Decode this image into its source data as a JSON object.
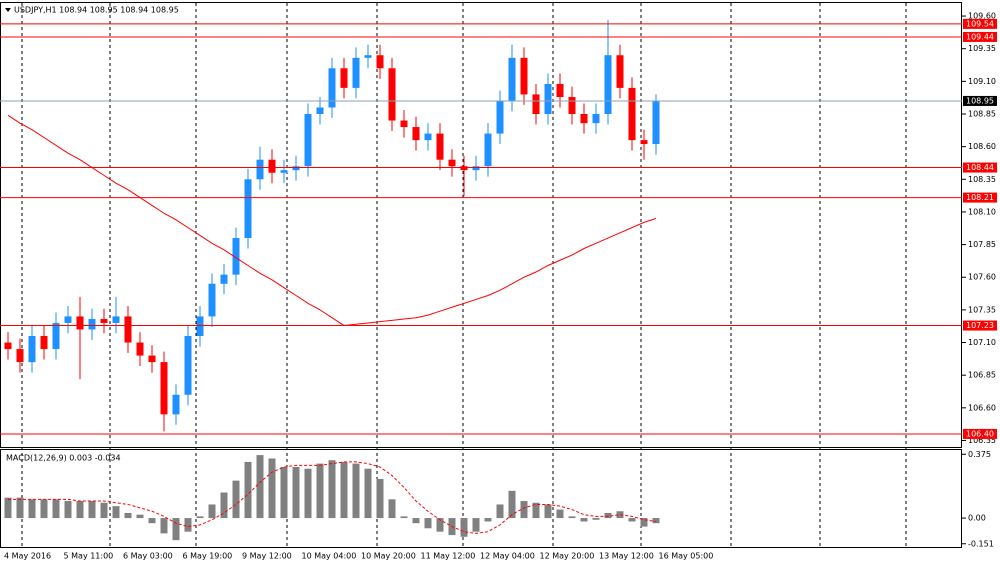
{
  "chart_data": [
    {
      "type": "candlestick",
      "title": "USDJPY,H1  108.94 108.95 108.94 108.95",
      "up_color": "#1e90ff",
      "down_color": "#ff0000",
      "open": [
        107.1,
        107.05,
        106.95,
        107.15,
        107.05,
        107.25,
        107.3,
        107.2,
        107.28,
        107.25,
        107.3,
        107.1,
        107.0,
        106.95,
        106.55,
        106.7,
        107.15,
        107.3,
        107.55,
        107.62,
        107.9,
        108.35,
        108.5,
        108.4,
        108.42,
        108.45,
        108.85,
        108.9,
        109.2,
        109.05,
        109.28,
        109.3,
        109.2,
        108.8,
        108.75,
        108.65,
        108.7,
        108.5,
        108.45,
        108.42,
        108.45,
        108.7,
        108.95,
        109.28,
        109.0,
        108.85,
        109.08,
        108.98,
        108.85,
        108.78,
        108.85,
        109.3,
        109.05,
        108.65,
        108.62
      ],
      "high": [
        107.18,
        107.13,
        107.23,
        107.23,
        107.33,
        107.38,
        107.45,
        107.36,
        107.36,
        107.45,
        107.38,
        107.18,
        107.08,
        107.03,
        106.78,
        107.23,
        107.38,
        107.63,
        107.7,
        107.98,
        108.43,
        108.6,
        108.58,
        108.5,
        108.53,
        108.93,
        108.98,
        109.28,
        109.28,
        109.36,
        109.38,
        109.38,
        109.28,
        108.88,
        108.83,
        108.78,
        108.78,
        108.58,
        108.53,
        108.53,
        108.78,
        109.03,
        109.38,
        109.36,
        109.08,
        109.16,
        109.16,
        109.06,
        108.93,
        108.93,
        109.57,
        109.38,
        109.13,
        108.73,
        109.0
      ],
      "low": [
        106.97,
        106.87,
        106.87,
        106.97,
        106.97,
        107.17,
        106.82,
        107.12,
        107.17,
        107.17,
        107.02,
        106.92,
        106.87,
        106.42,
        106.47,
        106.62,
        107.07,
        107.22,
        107.47,
        107.54,
        107.82,
        108.27,
        108.32,
        108.32,
        108.34,
        108.37,
        108.77,
        108.82,
        108.97,
        108.97,
        109.2,
        109.12,
        108.72,
        108.67,
        108.57,
        108.57,
        108.42,
        108.37,
        108.22,
        108.34,
        108.37,
        108.62,
        108.87,
        108.92,
        108.77,
        108.77,
        108.9,
        108.77,
        108.7,
        108.7,
        108.77,
        108.97,
        108.57,
        108.5,
        108.54
      ],
      "close": [
        107.05,
        106.95,
        107.15,
        107.05,
        107.25,
        107.3,
        107.2,
        107.28,
        107.25,
        107.3,
        107.1,
        107.0,
        106.95,
        106.55,
        106.7,
        107.15,
        107.3,
        107.55,
        107.62,
        107.9,
        108.35,
        108.5,
        108.4,
        108.42,
        108.45,
        108.85,
        108.9,
        109.2,
        109.05,
        109.28,
        109.3,
        109.2,
        108.8,
        108.75,
        108.65,
        108.7,
        108.5,
        108.45,
        108.42,
        108.45,
        108.7,
        108.95,
        109.28,
        109.0,
        108.85,
        109.08,
        108.98,
        108.85,
        108.78,
        108.85,
        109.3,
        109.05,
        108.65,
        108.62,
        108.95
      ],
      "ma": {
        "color": "#ff0000",
        "values": [
          108.84,
          108.78,
          108.73,
          108.67,
          108.61,
          108.55,
          108.5,
          108.44,
          108.38,
          108.32,
          108.27,
          108.21,
          108.15,
          108.09,
          108.04,
          107.98,
          107.92,
          107.86,
          107.81,
          107.75,
          107.69,
          107.63,
          107.58,
          107.52,
          107.46,
          107.4,
          107.35,
          107.29,
          107.23,
          107.24,
          107.25,
          107.26,
          107.27,
          107.28,
          107.29,
          107.31,
          107.34,
          107.37,
          107.4,
          107.43,
          107.46,
          107.5,
          107.55,
          107.6,
          107.64,
          107.69,
          107.73,
          107.77,
          107.82,
          107.86,
          107.9,
          107.94,
          107.98,
          108.02,
          108.05
        ]
      },
      "levels": {
        "color": "#ff0000",
        "values": [
          109.54,
          109.44,
          108.44,
          108.21,
          107.23,
          {
            "value": 106.4,
            "label": "106.40"
          }
        ]
      },
      "bid": {
        "value": 108.95,
        "color": "#8ea0b4"
      },
      "ylim": [
        106.3,
        109.7
      ],
      "yticks": [
        {
          "value": 109.6,
          "label": "109.60"
        },
        109.35,
        {
          "value": 109.1,
          "label": "109.10"
        },
        108.85,
        {
          "value": 108.6,
          "label": "108.60"
        },
        108.35,
        {
          "value": 108.1,
          "label": "108.10"
        },
        107.85,
        {
          "value": 107.6,
          "label": "107.60"
        },
        107.35,
        {
          "value": 107.1,
          "label": "107.10"
        },
        106.85,
        {
          "value": 106.6,
          "label": "106.60"
        },
        106.35
      ],
      "x_labels": [
        "4 May 2016",
        "5 May 11:00",
        "6 May 03:00",
        "6 May 19:00",
        "9 May 12:00",
        "10 May 04:00",
        "10 May 20:00",
        "11 May 12:00",
        "12 May 04:00",
        "12 May 20:00",
        "13 May 12:00",
        "16 May 05:00"
      ]
    },
    {
      "type": "bar",
      "title": "MACD(12,26,9) 0.003 -0.034",
      "color": "#808080",
      "values": [
        0.12,
        0.12,
        0.11,
        0.11,
        0.11,
        0.1,
        0.1,
        0.1,
        0.09,
        0.07,
        0.03,
        0.02,
        -0.03,
        -0.09,
        -0.13,
        -0.08,
        0.01,
        0.08,
        0.15,
        0.22,
        0.33,
        0.37,
        0.35,
        0.3,
        0.3,
        0.29,
        0.32,
        0.34,
        0.33,
        0.32,
        0.29,
        0.23,
        0.11,
        0.01,
        -0.03,
        -0.06,
        -0.08,
        -0.1,
        -0.11,
        -0.08,
        -0.02,
        0.08,
        0.16,
        0.1,
        0.09,
        0.08,
        0.05,
        0.01,
        -0.02,
        -0.01,
        0.03,
        0.04,
        -0.02,
        -0.05,
        -0.03
      ],
      "signal": {
        "color": "#ff0000",
        "values": [
          0.11,
          0.11,
          0.11,
          0.11,
          0.11,
          0.11,
          0.1,
          0.1,
          0.1,
          0.09,
          0.08,
          0.06,
          0.04,
          0.01,
          -0.03,
          -0.05,
          -0.04,
          -0.01,
          0.03,
          0.08,
          0.14,
          0.21,
          0.27,
          0.3,
          0.31,
          0.31,
          0.31,
          0.32,
          0.33,
          0.33,
          0.32,
          0.3,
          0.25,
          0.18,
          0.1,
          0.04,
          -0.01,
          -0.05,
          -0.08,
          -0.09,
          -0.08,
          -0.04,
          0.02,
          0.06,
          0.08,
          0.08,
          0.07,
          0.05,
          0.02,
          0.01,
          0.01,
          0.02,
          0.01,
          -0.01,
          -0.02
        ]
      },
      "ylim": [
        -0.17,
        0.4
      ],
      "yticks": [
        0.375,
        {
          "value": 0,
          "label": "0.00"
        },
        -0.151
      ]
    }
  ]
}
